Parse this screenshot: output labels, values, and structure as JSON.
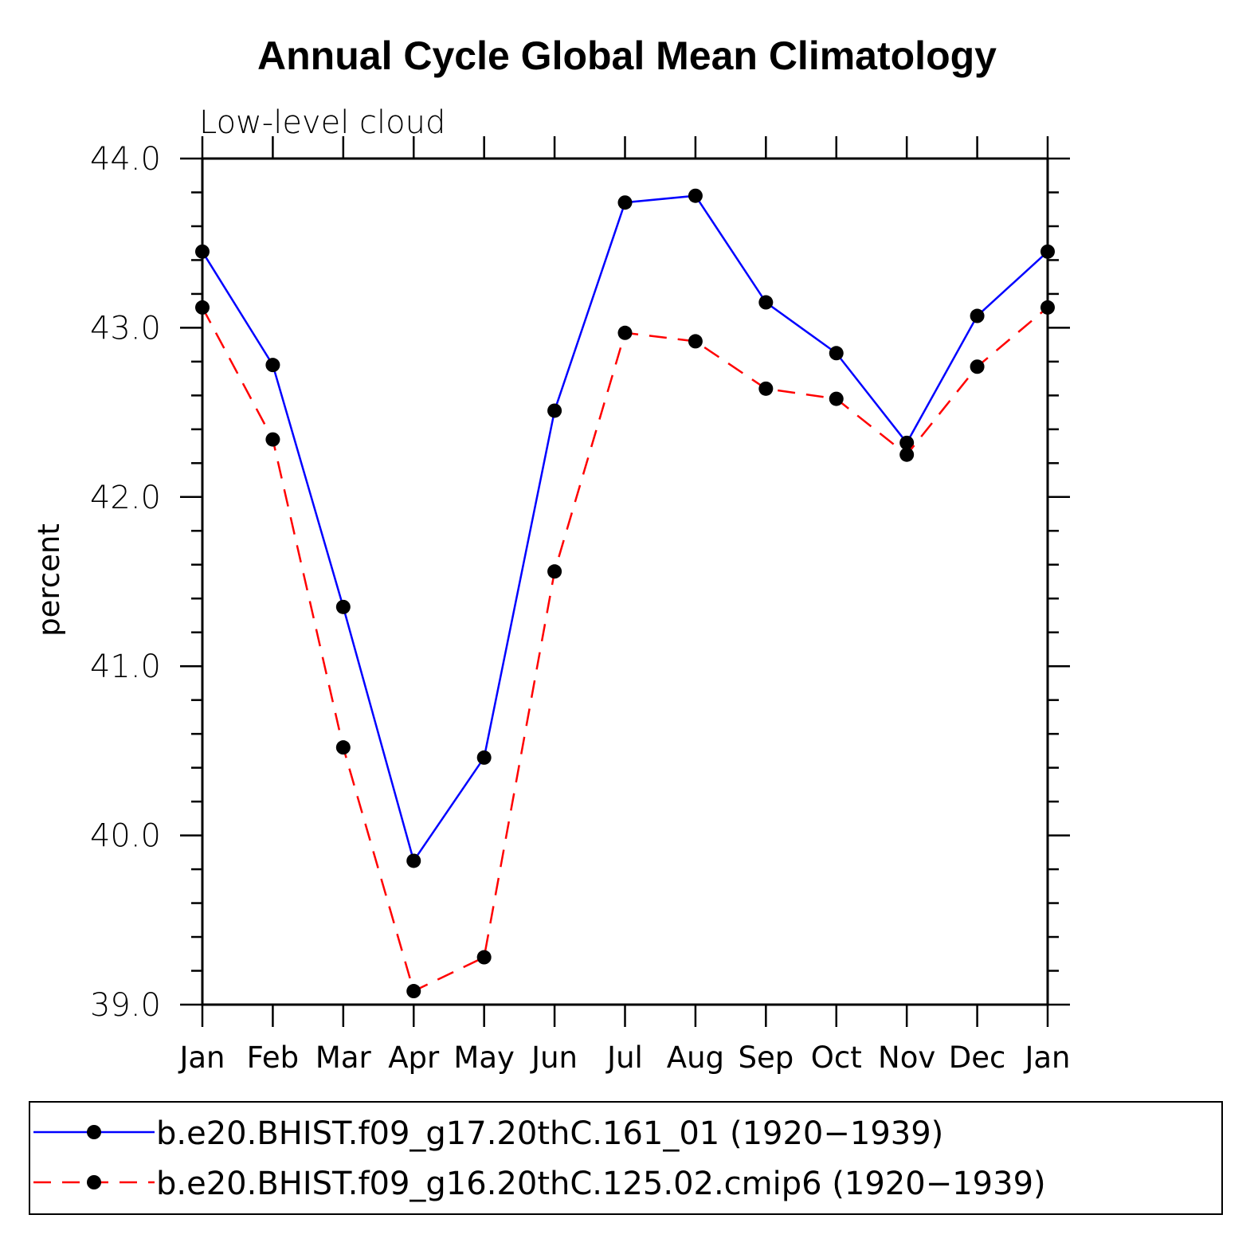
{
  "chart_data": {
    "type": "line",
    "title": "Annual Cycle Global Mean Climatology",
    "subtitle": "Low-level cloud",
    "ylabel": "percent",
    "xlabel": "",
    "ylim": [
      39.0,
      44.0
    ],
    "yticks": [
      "39.0",
      "40.0",
      "41.0",
      "42.0",
      "43.0",
      "44.0"
    ],
    "categories": [
      "Jan",
      "Feb",
      "Mar",
      "Apr",
      "May",
      "Jun",
      "Jul",
      "Aug",
      "Sep",
      "Oct",
      "Nov",
      "Dec",
      "Jan"
    ],
    "series": [
      {
        "name": "b.e20.BHIST.f09_g17.20thC.161_01 (1920−1939)",
        "color": "#0000ff",
        "dash": "solid",
        "values": [
          43.45,
          42.78,
          41.35,
          39.85,
          40.46,
          42.51,
          43.74,
          43.78,
          43.15,
          42.85,
          42.32,
          43.07,
          43.45
        ]
      },
      {
        "name": "b.e20.BHIST.f09_g16.20thC.125.02.cmip6 (1920−1939)",
        "color": "#ff0000",
        "dash": "dashed",
        "values": [
          43.12,
          42.34,
          40.52,
          39.08,
          39.28,
          41.56,
          42.97,
          42.92,
          42.64,
          42.58,
          42.25,
          42.77,
          43.12
        ]
      }
    ],
    "legend_position": "bottom",
    "marker": "filled-circle"
  }
}
